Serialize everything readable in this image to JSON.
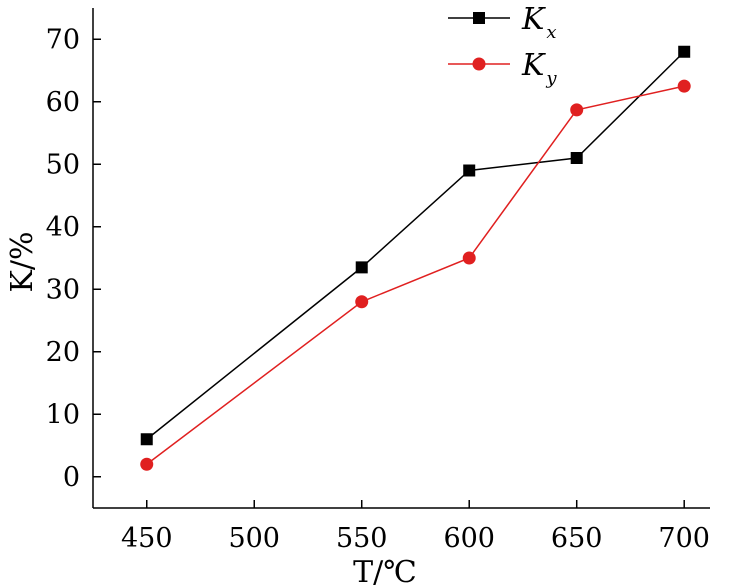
{
  "chart_data": {
    "type": "line",
    "xlabel": "T/℃",
    "ylabel": "K/%",
    "xlim": [
      425,
      712
    ],
    "ylim": [
      -5,
      75
    ],
    "xticks": [
      450,
      500,
      550,
      600,
      650,
      700
    ],
    "yticks": [
      0,
      10,
      20,
      30,
      40,
      50,
      60,
      70
    ],
    "grid": false,
    "legend_position": "top-right",
    "series": [
      {
        "name": "Kx",
        "color": "#000000",
        "marker": "square",
        "x": [
          450,
          550,
          600,
          650,
          700
        ],
        "y": [
          6,
          33.5,
          49,
          51,
          68
        ]
      },
      {
        "name": "Ky",
        "color": "#e02020",
        "marker": "circle",
        "x": [
          450,
          550,
          600,
          650,
          700
        ],
        "y": [
          2,
          28,
          35,
          58.7,
          62.5
        ]
      }
    ]
  }
}
